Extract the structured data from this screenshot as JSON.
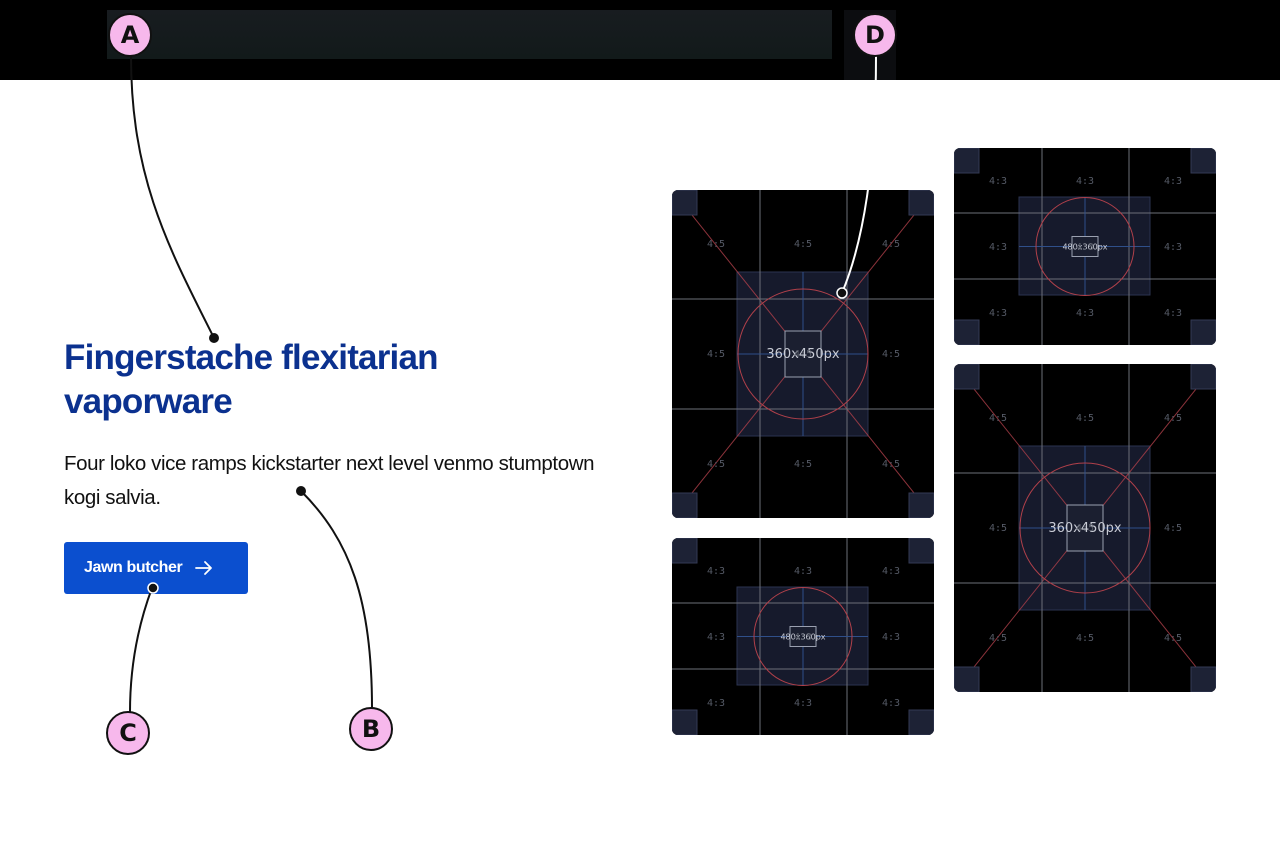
{
  "hero": {
    "title": "Fingerstache flexitarian vaporware",
    "description": "Four loko vice ramps kickstarter next level venmo stumptown kogi salvia.",
    "cta_label": "Jawn butcher"
  },
  "placeholders": [
    {
      "size_label": "360x450px",
      "ratio": "4:5"
    },
    {
      "size_label": "480x360px",
      "ratio": "4:3"
    },
    {
      "size_label": "360x450px",
      "ratio": "4:5"
    },
    {
      "size_label": "480x360px",
      "ratio": "4:3"
    }
  ],
  "annotations": [
    "A",
    "B",
    "C",
    "D"
  ],
  "colors": {
    "heading": "#0b318f",
    "button": "#0b4fcf",
    "annotation_fill": "#f7b8ec",
    "placeholder_bg": "#000000"
  }
}
